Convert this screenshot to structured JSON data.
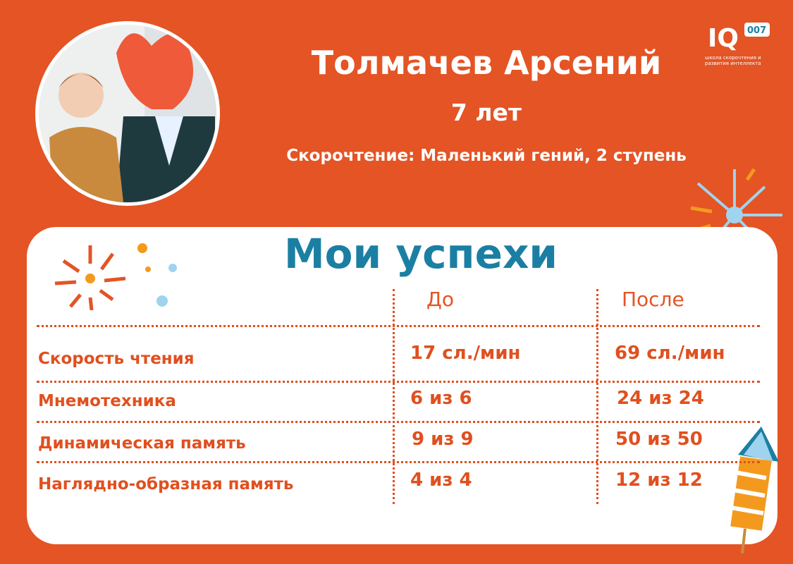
{
  "header": {
    "name": "Толмачев Арсений",
    "age": "7 лет",
    "course": "Скорочтение: Маленький гений, 2 ступень"
  },
  "logo": {
    "mark": "IQ 007",
    "tagline": "школа скорочтения и развития интеллекта"
  },
  "section_title": "Мои успехи",
  "table": {
    "columns": [
      "До",
      "После"
    ],
    "rows": [
      {
        "label": "Скорость чтения",
        "before": "17 сл./мин",
        "after": "69 сл./мин"
      },
      {
        "label": "Мнемотехника",
        "before": "6 из 6",
        "after": "24 из 24"
      },
      {
        "label": "Динамическая память",
        "before": "9 из 9",
        "after": "50 из 50"
      },
      {
        "label": "Наглядно-образная память",
        "before": "4 из 4",
        "after": "12 из 12"
      }
    ]
  },
  "colors": {
    "background": "#e45424",
    "title": "#1b7fa3",
    "accent_blue": "#9fd3ee",
    "accent_orange": "#f39a1e"
  }
}
